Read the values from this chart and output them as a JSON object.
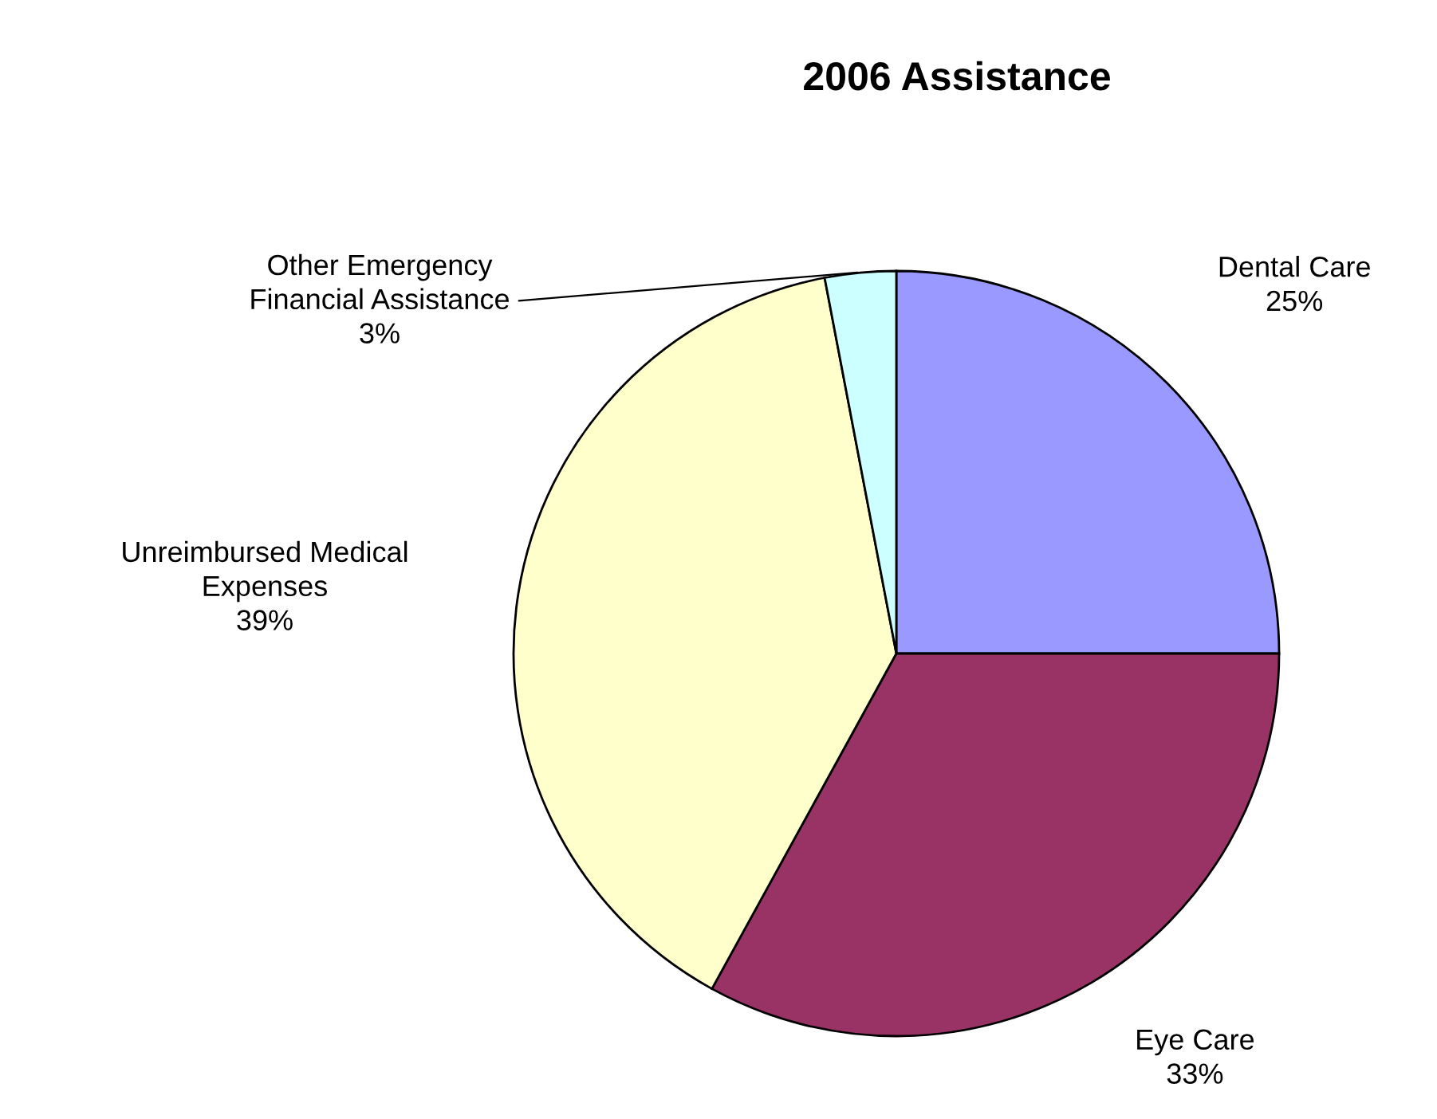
{
  "chart_data": {
    "type": "pie",
    "title": "2006 Assistance",
    "categories": [
      "Dental Care",
      "Eye Care",
      "Unreimbursed Medical\nExpenses",
      "Other Emergency\nFinancial Assistance"
    ],
    "values": [
      25,
      33,
      39,
      3
    ],
    "value_labels": [
      "25%",
      "33%",
      "39%",
      "3%"
    ],
    "colors": [
      "#9999ff",
      "#993366",
      "#ffffcc",
      "#ccffff"
    ]
  }
}
